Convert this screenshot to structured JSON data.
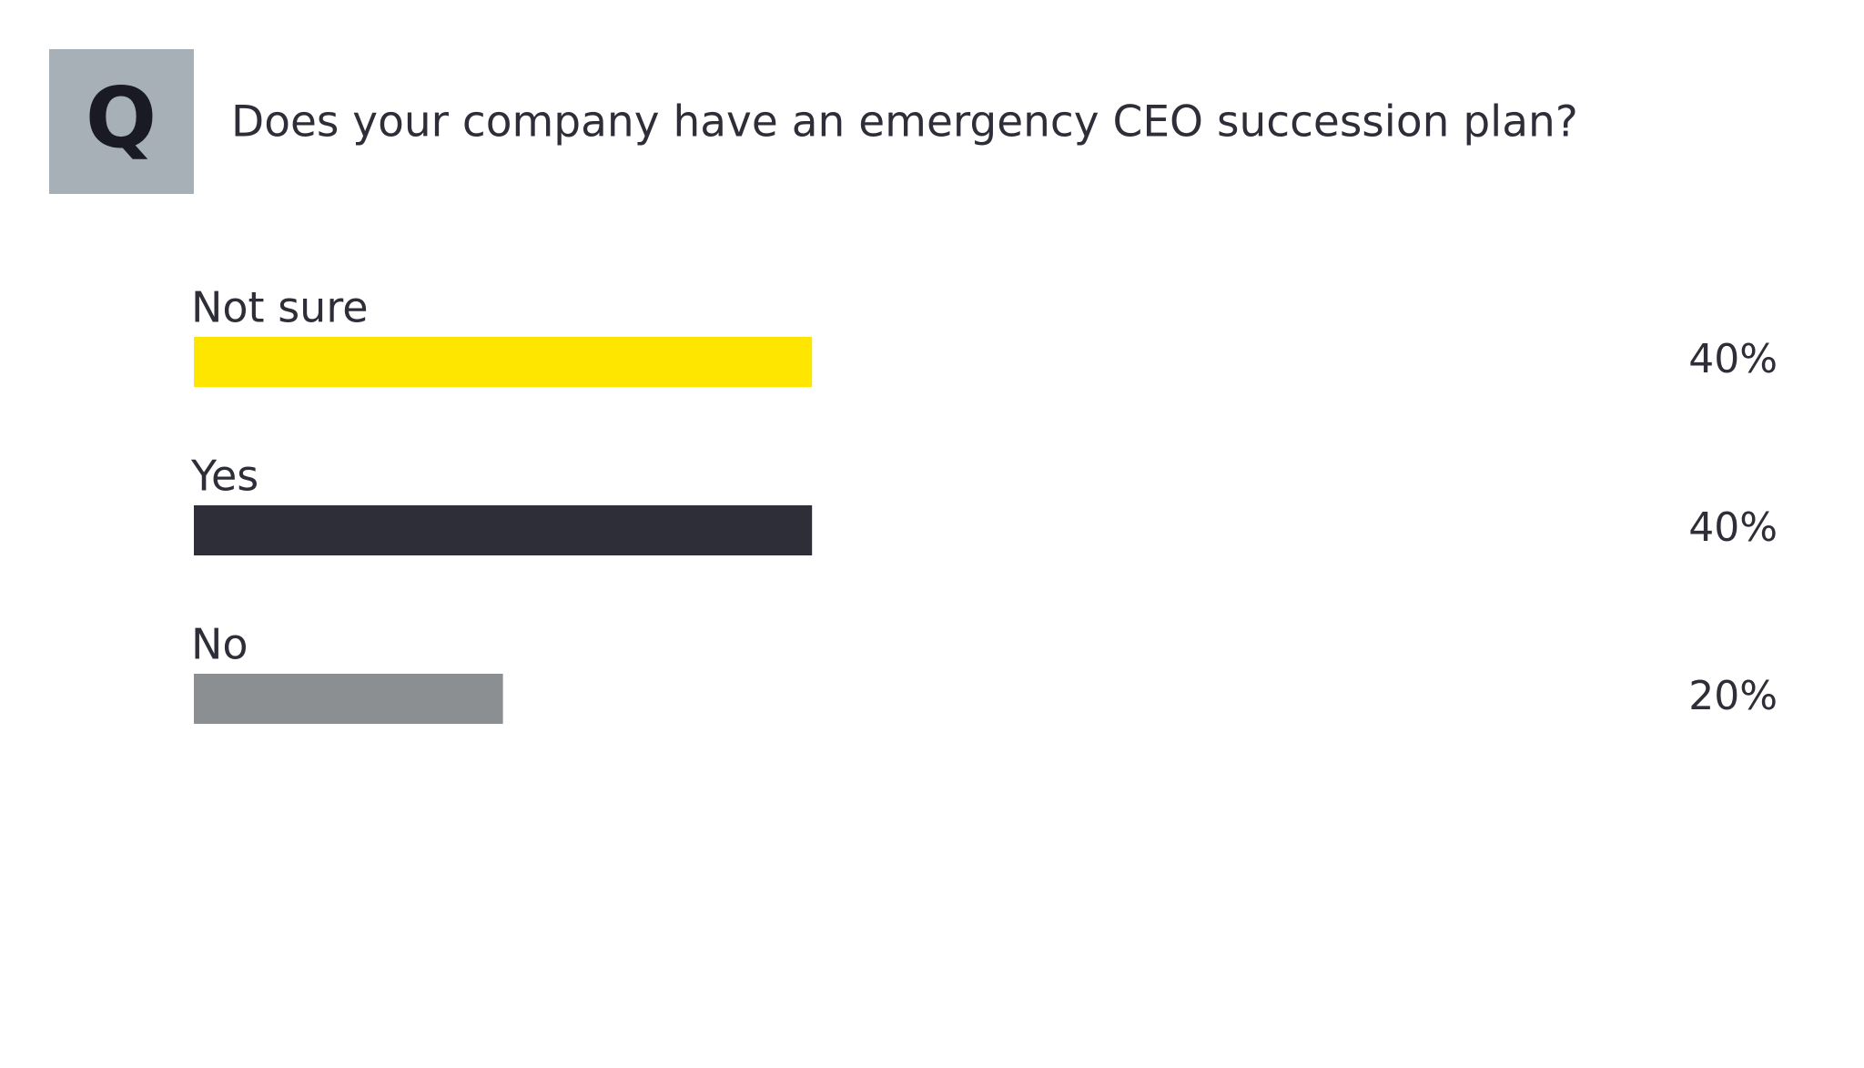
{
  "badge": "Q",
  "chart_data": {
    "type": "bar",
    "orientation": "horizontal",
    "title": "Does your company have an emergency CEO succession plan?",
    "categories": [
      "Not sure",
      "Yes",
      "No"
    ],
    "values": [
      40,
      40,
      20
    ],
    "value_labels": [
      "40%",
      "40%",
      "20%"
    ],
    "colors": [
      "#ffe600",
      "#2e2e38",
      "#8c8f92"
    ]
  }
}
